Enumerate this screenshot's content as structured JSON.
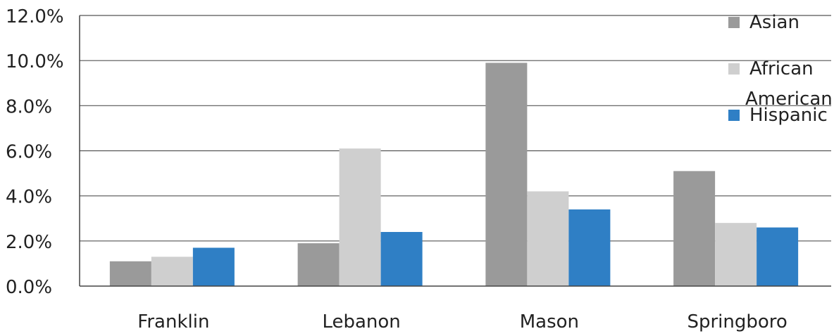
{
  "chart_data": {
    "type": "bar",
    "title": "",
    "xlabel": "",
    "ylabel": "",
    "categories": [
      "Franklin",
      "Lebanon",
      "Mason",
      "Springboro"
    ],
    "series": [
      {
        "name": "Asian",
        "color": "#9a9a9a",
        "values": [
          1.1,
          1.9,
          9.9,
          5.1
        ]
      },
      {
        "name": "African American",
        "color": "#cfcfcf",
        "values": [
          1.3,
          6.1,
          4.2,
          2.8
        ]
      },
      {
        "name": "Hispanic",
        "color": "#2f7fc5",
        "values": [
          1.7,
          2.4,
          3.4,
          2.6
        ]
      }
    ],
    "ylim": [
      0,
      12
    ],
    "yticks": [
      "0.0%",
      "2.0%",
      "4.0%",
      "6.0%",
      "8.0%",
      "10.0%",
      "12.0%"
    ],
    "grid": true,
    "legend": {
      "position": "top-right",
      "lines": [
        {
          "series": 0,
          "label": "Asian"
        },
        {
          "series": 1,
          "label": "African"
        },
        {
          "series": null,
          "label": "American"
        },
        {
          "series": 2,
          "label": "Hispanic"
        }
      ]
    }
  }
}
